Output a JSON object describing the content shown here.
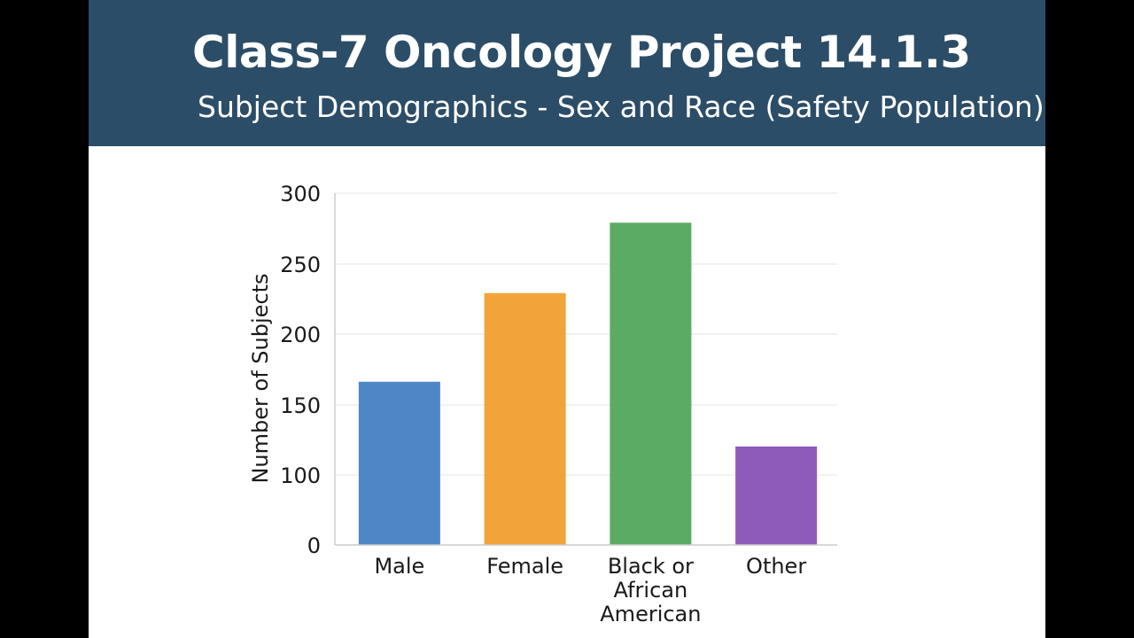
{
  "header": {
    "title": "Class-7 Oncology Project 14.1.3",
    "subtitle": "Subject Demographics - Sex and Race (Safety Population)"
  },
  "colors": {
    "background": "#000000",
    "banner": "#2c4d67",
    "banner_text": "#ffffff",
    "grid": "#e6e6e6",
    "axis": "#cccccc"
  },
  "chart_data": {
    "type": "bar",
    "title": "",
    "xlabel": "",
    "ylabel": "Number of Subjects",
    "categories": [
      [
        "Male"
      ],
      [
        "Female"
      ],
      [
        "Black or",
        "African",
        "American"
      ],
      [
        "Other"
      ]
    ],
    "values": [
      166,
      229,
      279,
      120
    ],
    "bar_colors": [
      "#4f87c6",
      "#f2a43b",
      "#5bab63",
      "#8f5bbb"
    ],
    "y_tick_labels": [
      "0",
      "100",
      "150",
      "200",
      "250",
      "300"
    ],
    "ylim": [
      50,
      300
    ],
    "grid": true,
    "legend": "none"
  }
}
